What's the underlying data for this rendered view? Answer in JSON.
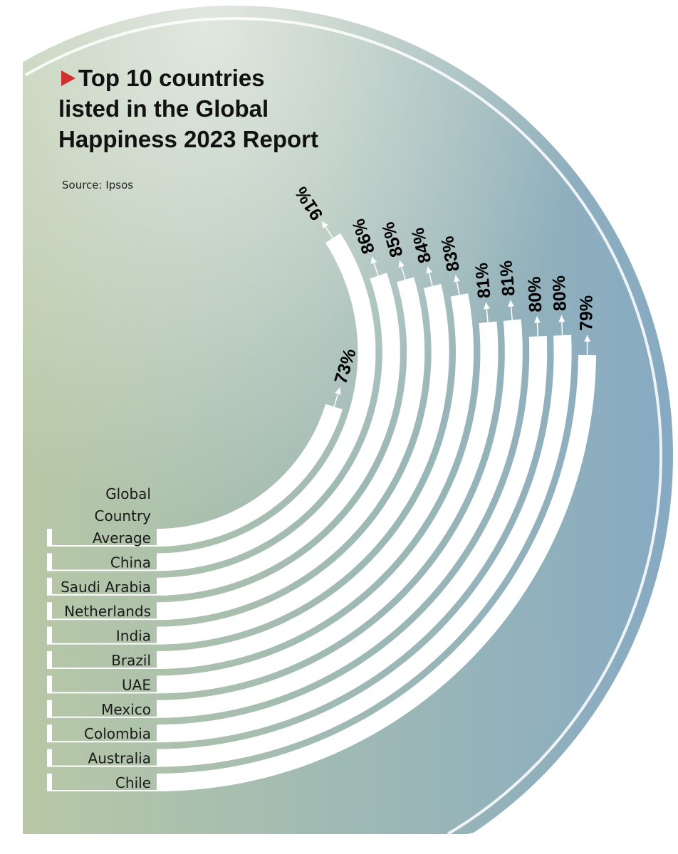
{
  "title_lines": [
    "Top 10 countries",
    "listed in the Global",
    "Happiness 2023 Report"
  ],
  "source": "Source: Ipsos",
  "colors": {
    "bg_left": "#b8c8a6",
    "bg_right": "#86aac2",
    "bg_top_light": "#e4eae2",
    "bar": "#ffffff",
    "marker": "#d0302f",
    "text": "#000000"
  },
  "chart_data": {
    "type": "radial-bar",
    "title": "Top 10 countries listed in the Global Happiness 2023 Report",
    "source": "Source: Ipsos",
    "unit": "%",
    "categories": [
      "Global Country Average",
      "China",
      "Saudi Arabia",
      "Netherlands",
      "India",
      "Brazil",
      "UAE",
      "Mexico",
      "Colombia",
      "Australia",
      "Chile"
    ],
    "category_label_lines": [
      [
        "Global",
        "Country",
        "Average"
      ],
      [
        "China"
      ],
      [
        "Saudi Arabia"
      ],
      [
        "Netherlands"
      ],
      [
        "India"
      ],
      [
        "Brazil"
      ],
      [
        "UAE"
      ],
      [
        "Mexico"
      ],
      [
        "Colombia"
      ],
      [
        "Australia"
      ],
      [
        "Chile"
      ]
    ],
    "values": [
      73,
      91,
      86,
      85,
      84,
      83,
      81,
      81,
      80,
      80,
      79
    ],
    "value_labels": [
      "73%",
      "91%",
      "86%",
      "85%",
      "84%",
      "83%",
      "81%",
      "81%",
      "80%",
      "80%",
      "79%"
    ],
    "grid": false,
    "legend": "none"
  }
}
